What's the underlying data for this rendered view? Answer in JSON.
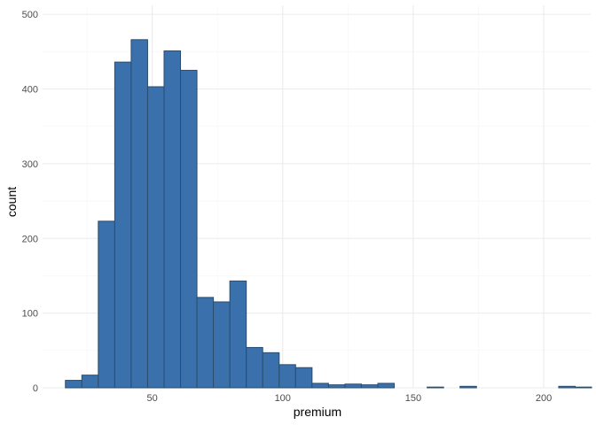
{
  "chart_data": {
    "type": "histogram",
    "xlabel": "premium",
    "ylabel": "count",
    "xlim": [
      8,
      218
    ],
    "ylim": [
      0,
      512
    ],
    "x_ticks": [
      50,
      100,
      150,
      200
    ],
    "y_ticks": [
      0,
      100,
      200,
      300,
      400,
      500
    ],
    "x_minor_ticks": [
      25,
      75,
      125,
      175
    ],
    "y_minor_ticks": [
      50,
      150,
      250,
      350,
      450
    ],
    "grid": true,
    "bin_width": 6.3,
    "bins": [
      {
        "x0": 16.75,
        "x1": 23.05,
        "count": 10
      },
      {
        "x0": 23.05,
        "x1": 29.35,
        "count": 17
      },
      {
        "x0": 29.35,
        "x1": 35.65,
        "count": 223
      },
      {
        "x0": 35.65,
        "x1": 41.95,
        "count": 436
      },
      {
        "x0": 41.95,
        "x1": 48.25,
        "count": 466
      },
      {
        "x0": 48.25,
        "x1": 54.55,
        "count": 403
      },
      {
        "x0": 54.55,
        "x1": 60.85,
        "count": 451
      },
      {
        "x0": 60.85,
        "x1": 67.15,
        "count": 425
      },
      {
        "x0": 67.15,
        "x1": 73.45,
        "count": 121
      },
      {
        "x0": 73.45,
        "x1": 79.75,
        "count": 115
      },
      {
        "x0": 79.75,
        "x1": 86.05,
        "count": 143
      },
      {
        "x0": 86.05,
        "x1": 92.35,
        "count": 54
      },
      {
        "x0": 92.35,
        "x1": 98.65,
        "count": 47
      },
      {
        "x0": 98.65,
        "x1": 104.95,
        "count": 31
      },
      {
        "x0": 104.95,
        "x1": 111.25,
        "count": 27
      },
      {
        "x0": 111.25,
        "x1": 117.55,
        "count": 6
      },
      {
        "x0": 117.55,
        "x1": 123.85,
        "count": 4
      },
      {
        "x0": 123.85,
        "x1": 130.15,
        "count": 5
      },
      {
        "x0": 130.15,
        "x1": 136.45,
        "count": 4
      },
      {
        "x0": 136.45,
        "x1": 142.75,
        "count": 6
      },
      {
        "x0": 142.75,
        "x1": 149.05,
        "count": 0
      },
      {
        "x0": 149.05,
        "x1": 155.35,
        "count": 0
      },
      {
        "x0": 155.35,
        "x1": 161.65,
        "count": 1
      },
      {
        "x0": 161.65,
        "x1": 167.95,
        "count": 0
      },
      {
        "x0": 167.95,
        "x1": 174.25,
        "count": 2
      },
      {
        "x0": 174.25,
        "x1": 180.55,
        "count": 0
      },
      {
        "x0": 180.55,
        "x1": 186.85,
        "count": 0
      },
      {
        "x0": 186.85,
        "x1": 193.15,
        "count": 0
      },
      {
        "x0": 193.15,
        "x1": 199.45,
        "count": 0
      },
      {
        "x0": 199.45,
        "x1": 205.75,
        "count": 0
      },
      {
        "x0": 205.75,
        "x1": 212.05,
        "count": 2
      },
      {
        "x0": 212.05,
        "x1": 218.35,
        "count": 1
      }
    ],
    "bar_fill": "#3a70ab",
    "bar_stroke": "#2a4d6e",
    "grid_major_color": "#ebebeb",
    "grid_minor_color": "#f5f5f5"
  }
}
